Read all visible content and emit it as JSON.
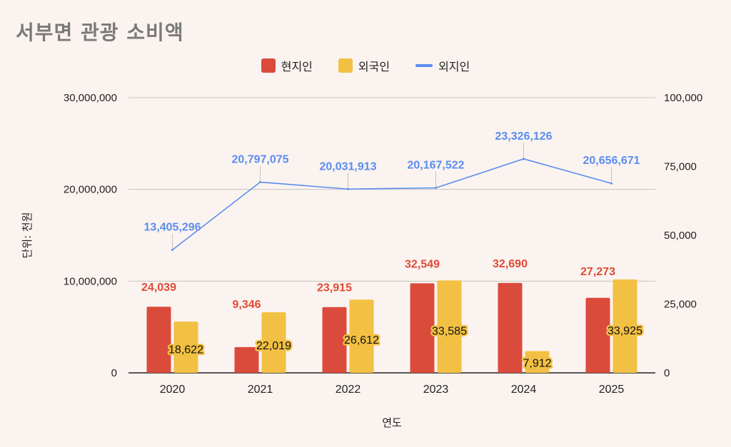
{
  "chart_data": {
    "type": "bar",
    "title": "서부면 관광 소비액",
    "xlabel": "연도",
    "ylabel": "단위: 천원",
    "categories": [
      "2020",
      "2021",
      "2022",
      "2023",
      "2024",
      "2025"
    ],
    "left_axis": {
      "range": [
        0,
        30000000
      ],
      "ticks": [
        0,
        10000000,
        20000000,
        30000000
      ],
      "tick_labels": [
        "0",
        "10,000,000",
        "20,000,000",
        "30,000,000"
      ]
    },
    "right_axis": {
      "range": [
        0,
        100000
      ],
      "ticks": [
        0,
        25000,
        50000,
        75000,
        100000
      ],
      "tick_labels": [
        "0",
        "25,000",
        "50,000",
        "75,000",
        "100,000"
      ]
    },
    "series": [
      {
        "name": "현지인",
        "type": "bar",
        "axis": "right",
        "color": "#db4b3c",
        "values": [
          24039,
          9346,
          23915,
          32549,
          32690,
          27273
        ],
        "labels": [
          "24,039",
          "9,346",
          "23,915",
          "32,549",
          "32,690",
          "27,273"
        ]
      },
      {
        "name": "외국인",
        "type": "bar",
        "axis": "right",
        "color": "#f2c043",
        "values": [
          18622,
          22019,
          26612,
          33585,
          7912,
          33925
        ],
        "labels": [
          "18,622",
          "22,019",
          "26,612",
          "33,585",
          "7,912",
          "33,925"
        ]
      },
      {
        "name": "외지인",
        "type": "line",
        "axis": "left",
        "color": "#5b8def",
        "values": [
          13405296,
          20797075,
          20031913,
          20167522,
          23326126,
          20656671
        ],
        "labels": [
          "13,405,296",
          "20,797,075",
          "20,031,913",
          "20,167,522",
          "23,326,126",
          "20,656,671"
        ]
      }
    ],
    "legend": "top-center",
    "grid": true
  }
}
